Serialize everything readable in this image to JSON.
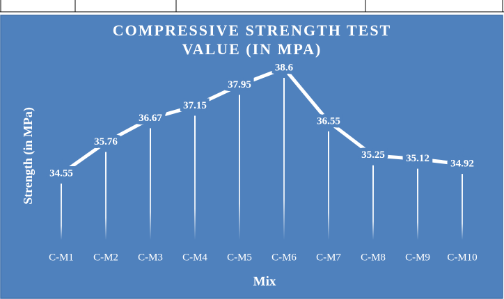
{
  "chart_data": {
    "type": "line",
    "title": [
      "COMPRESSIVE STRENGTH TEST",
      "VALUE (IN MPA)"
    ],
    "y_label": "Strength (in MPa)",
    "x_label": "Mix",
    "categories": [
      "C-M1",
      "C-M2",
      "C-M3",
      "C-M4",
      "C-M5",
      "C-M6",
      "C-M7",
      "C-M8",
      "C-M9",
      "C-M10"
    ],
    "values": [
      34.55,
      35.76,
      36.67,
      37.15,
      37.95,
      38.6,
      36.55,
      35.25,
      35.12,
      34.92
    ],
    "color": "#ffffff",
    "background": "#4f81bd"
  }
}
